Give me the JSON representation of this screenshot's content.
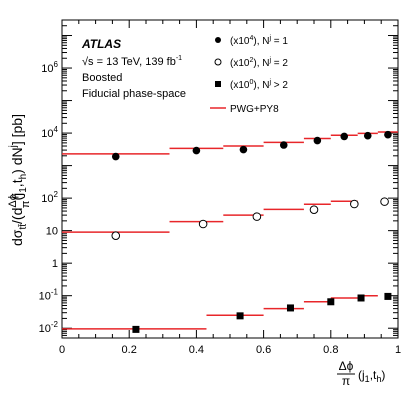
{
  "chart_data": {
    "type": "scatter",
    "log_y": true,
    "xlim": [
      0,
      1
    ],
    "ylim": [
      0.005,
      30000000
    ],
    "x_ticks": [
      0,
      0.2,
      0.4,
      0.6,
      0.8,
      1
    ],
    "x_tick_labels": [
      "0",
      "0.2",
      "0.4",
      "0.6",
      "0.8",
      "1"
    ],
    "y_ticks": [
      0.01,
      0.1,
      1,
      10,
      100,
      10000,
      1000000
    ],
    "y_tick_labels": [
      {
        "base": "10",
        "exp": "-2"
      },
      {
        "base": "10",
        "exp": "-1"
      },
      {
        "base": "1",
        "exp": ""
      },
      {
        "base": "10",
        "exp": ""
      },
      {
        "base": "10",
        "exp": "2"
      },
      {
        "base": "10",
        "exp": "4"
      },
      {
        "base": "10",
        "exp": "6"
      }
    ],
    "bin_edges": [
      0,
      0.32,
      0.48,
      0.6,
      0.72,
      0.8,
      0.88,
      0.94,
      1.0
    ],
    "ylabel": {
      "prefix": "dσ",
      "prefix_sub": "tt̄",
      "frac_num": "Δϕ",
      "frac_den": "π",
      "mid": "(j",
      "mid_sub1": "1",
      "mid_comma": ",t",
      "mid_sub2": "h",
      "mid_close": ") dN",
      "sup": "j",
      "suffix": "] [pb]",
      "open": "/(d"
    },
    "xlabel": {
      "frac_num": "Δϕ",
      "frac_den": "π",
      "rest": "(j",
      "sub1": "1",
      "comma": ",t",
      "sub2": "h",
      "close": ")"
    },
    "annotations": {
      "experiment": "ATLAS",
      "energy_prefix": "√s = 13 TeV, 139 fb",
      "energy_exp": "-1",
      "selection": "Boosted",
      "phase_space": "Fiducial phase-space"
    },
    "series": [
      {
        "name": "(x10⁴), Nʲ = 1",
        "scale_prefix": "(x10",
        "scale_exp": "4",
        "cond_prefix": "), N",
        "cond_sup": "j",
        "cond_suffix": " = 1",
        "marker": "filled-circle",
        "data_x": [
          0.16,
          0.4,
          0.54,
          0.66,
          0.76,
          0.84,
          0.91,
          0.97
        ],
        "data_y": [
          1900,
          2900,
          3100,
          4300,
          5900,
          7900,
          8300,
          8900
        ],
        "model_y": [
          2300,
          3400,
          4000,
          5200,
          6800,
          8600,
          9800,
          10800
        ]
      },
      {
        "name": "(x10²), Nʲ = 2",
        "scale_prefix": "(x10",
        "scale_exp": "2",
        "cond_prefix": "), N",
        "cond_sup": "j",
        "cond_suffix": " = 2",
        "marker": "open-circle",
        "data_x": [
          0.16,
          0.42,
          0.58,
          0.75,
          0.87,
          0.96
        ],
        "data_y": [
          7,
          16,
          27,
          44,
          66,
          78
        ],
        "model_y": [
          9,
          19,
          30,
          45,
          65,
          80
        ]
      },
      {
        "name": "(x10⁰), Nʲ > 2",
        "scale_prefix": "(x10",
        "scale_exp": "0",
        "cond_prefix": "), N",
        "cond_sup": "j",
        "cond_suffix": " > 2",
        "marker": "filled-square",
        "data_x": [
          0.22,
          0.53,
          0.68,
          0.8,
          0.89,
          0.97
        ],
        "data_y": [
          0.0092,
          0.024,
          0.042,
          0.065,
          0.085,
          0.095
        ],
        "model_y": [
          0.0095,
          0.025,
          0.04,
          0.065,
          0.085,
          0.1
        ],
        "model_edges": [
          0,
          0.43,
          0.6,
          0.72,
          0.8,
          0.88,
          0.94,
          1.0
        ]
      }
    ],
    "model_label": "PWG+PY8",
    "colors": {
      "model_line": "#e8262a",
      "marker": "#000000",
      "frame": "#000000",
      "background": "#ffffff"
    }
  }
}
